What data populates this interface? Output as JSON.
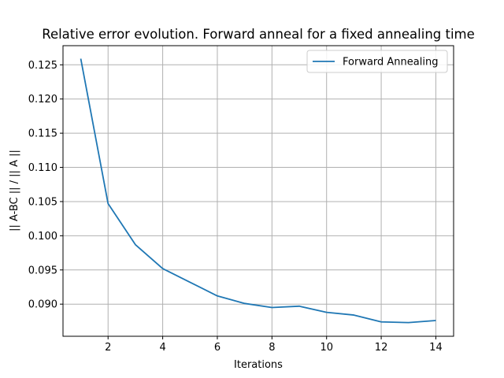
{
  "chart_data": {
    "type": "line",
    "title": "Relative error evolution. Forward anneal for a fixed annealing time",
    "xlabel": "Iterations",
    "ylabel": "|| A-BC || / || A ||",
    "xlim": [
      0.35,
      14.65
    ],
    "ylim": [
      0.0853,
      0.1278
    ],
    "x_ticks": [
      2,
      4,
      6,
      8,
      10,
      12,
      14
    ],
    "x_tick_labels": [
      "2",
      "4",
      "6",
      "8",
      "10",
      "12",
      "14"
    ],
    "y_ticks": [
      0.09,
      0.095,
      0.1,
      0.105,
      0.11,
      0.115,
      0.12,
      0.125
    ],
    "y_tick_labels": [
      "0.090",
      "0.095",
      "0.100",
      "0.105",
      "0.110",
      "0.115",
      "0.120",
      "0.125"
    ],
    "grid": true,
    "legend_position": "top-right",
    "series": [
      {
        "name": "Forward Annealing",
        "color": "#1f77b4",
        "x": [
          1,
          2,
          3,
          4,
          5,
          6,
          7,
          8,
          9,
          10,
          11,
          12,
          13,
          14
        ],
        "y": [
          0.1259,
          0.1047,
          0.0987,
          0.0952,
          0.0932,
          0.0912,
          0.0901,
          0.0895,
          0.0897,
          0.0888,
          0.0884,
          0.0874,
          0.0873,
          0.0876
        ]
      }
    ]
  }
}
